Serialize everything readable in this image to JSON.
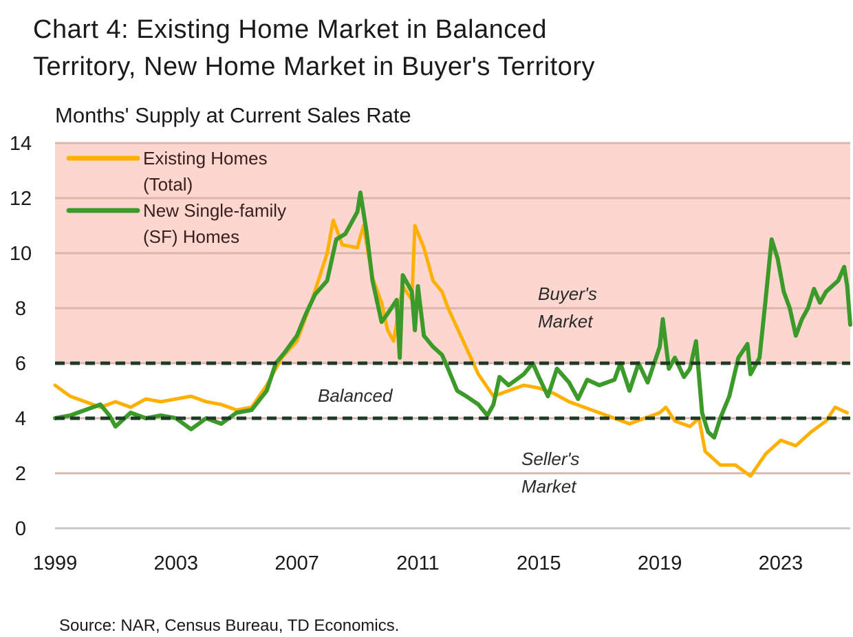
{
  "title": {
    "line1": "Chart 4: Existing Home Market in Balanced",
    "line2": "Territory, New Home Market in Buyer's Territory"
  },
  "source": "Source: NAR, Census Bureau, TD Economics.",
  "chart_data": {
    "type": "line",
    "ylabel": "Months' Supply at Current Sales Rate",
    "xlabel": "",
    "ylim": [
      0,
      14
    ],
    "yticks": [
      "0",
      "2",
      "4",
      "6",
      "8",
      "10",
      "12",
      "14"
    ],
    "xlim": [
      1999,
      2025.3
    ],
    "xticks": [
      "1999",
      "2003",
      "2007",
      "2011",
      "2015",
      "2019",
      "2023"
    ],
    "grid": "horizontal",
    "legend_position": "top-left",
    "bands": [
      {
        "label_line1": "Buyer's",
        "label_line2": "Market",
        "from": 6,
        "to": 14,
        "color": "#fbd7cf"
      },
      {
        "label_line1": "Balanced",
        "label_line2": "",
        "from": 4,
        "to": 6,
        "color": "#ffffff"
      },
      {
        "label_line1": "Seller's",
        "label_line2": "Market",
        "from": 0,
        "to": 4,
        "color": "#ffffff"
      }
    ],
    "reference_lines": [
      4,
      6
    ],
    "series": [
      {
        "name_line1": "Existing Homes",
        "name_line2": "(Total)",
        "color": "#ffb000",
        "points": [
          [
            1999.0,
            5.2
          ],
          [
            1999.5,
            4.8
          ],
          [
            2000.0,
            4.6
          ],
          [
            2000.5,
            4.4
          ],
          [
            2001.0,
            4.6
          ],
          [
            2001.5,
            4.4
          ],
          [
            2002.0,
            4.7
          ],
          [
            2002.5,
            4.6
          ],
          [
            2003.0,
            4.7
          ],
          [
            2003.5,
            4.8
          ],
          [
            2004.0,
            4.6
          ],
          [
            2004.5,
            4.5
          ],
          [
            2005.0,
            4.3
          ],
          [
            2005.5,
            4.4
          ],
          [
            2006.0,
            5.2
          ],
          [
            2006.5,
            6.2
          ],
          [
            2007.0,
            6.8
          ],
          [
            2007.5,
            8.3
          ],
          [
            2008.0,
            10.0
          ],
          [
            2008.2,
            11.2
          ],
          [
            2008.5,
            10.3
          ],
          [
            2009.0,
            10.2
          ],
          [
            2009.2,
            11.0
          ],
          [
            2009.5,
            9.1
          ],
          [
            2009.8,
            8.2
          ],
          [
            2010.0,
            7.2
          ],
          [
            2010.2,
            6.8
          ],
          [
            2010.5,
            8.8
          ],
          [
            2010.8,
            8.3
          ],
          [
            2010.9,
            11.0
          ],
          [
            2011.2,
            10.2
          ],
          [
            2011.5,
            9.0
          ],
          [
            2011.8,
            8.6
          ],
          [
            2012.0,
            8.0
          ],
          [
            2012.5,
            6.8
          ],
          [
            2013.0,
            5.6
          ],
          [
            2013.5,
            4.8
          ],
          [
            2014.0,
            5.0
          ],
          [
            2014.5,
            5.2
          ],
          [
            2015.0,
            5.1
          ],
          [
            2015.5,
            4.9
          ],
          [
            2016.0,
            4.6
          ],
          [
            2016.5,
            4.4
          ],
          [
            2017.0,
            4.2
          ],
          [
            2017.5,
            4.0
          ],
          [
            2018.0,
            3.8
          ],
          [
            2018.5,
            4.0
          ],
          [
            2019.0,
            4.2
          ],
          [
            2019.2,
            4.4
          ],
          [
            2019.5,
            3.9
          ],
          [
            2020.0,
            3.7
          ],
          [
            2020.3,
            4.0
          ],
          [
            2020.5,
            2.8
          ],
          [
            2021.0,
            2.3
          ],
          [
            2021.5,
            2.3
          ],
          [
            2022.0,
            1.9
          ],
          [
            2022.5,
            2.7
          ],
          [
            2023.0,
            3.2
          ],
          [
            2023.5,
            3.0
          ],
          [
            2024.0,
            3.5
          ],
          [
            2024.5,
            3.9
          ],
          [
            2024.8,
            4.4
          ],
          [
            2025.0,
            4.3
          ],
          [
            2025.2,
            4.2
          ]
        ]
      },
      {
        "name_line1": "New Single-family",
        "name_line2": "(SF) Homes",
        "color": "#3c9a2b",
        "points": [
          [
            1999.0,
            4.0
          ],
          [
            1999.5,
            4.1
          ],
          [
            2000.0,
            4.3
          ],
          [
            2000.5,
            4.5
          ],
          [
            2000.8,
            4.1
          ],
          [
            2001.0,
            3.7
          ],
          [
            2001.5,
            4.2
          ],
          [
            2002.0,
            4.0
          ],
          [
            2002.5,
            4.1
          ],
          [
            2003.0,
            4.0
          ],
          [
            2003.5,
            3.6
          ],
          [
            2004.0,
            4.0
          ],
          [
            2004.5,
            3.8
          ],
          [
            2005.0,
            4.2
          ],
          [
            2005.5,
            4.3
          ],
          [
            2006.0,
            5.0
          ],
          [
            2006.3,
            6.0
          ],
          [
            2006.6,
            6.4
          ],
          [
            2007.0,
            7.0
          ],
          [
            2007.3,
            7.8
          ],
          [
            2007.6,
            8.5
          ],
          [
            2008.0,
            9.0
          ],
          [
            2008.3,
            10.5
          ],
          [
            2008.6,
            10.7
          ],
          [
            2009.0,
            11.5
          ],
          [
            2009.1,
            12.2
          ],
          [
            2009.3,
            10.8
          ],
          [
            2009.5,
            9.0
          ],
          [
            2009.8,
            7.5
          ],
          [
            2010.0,
            7.8
          ],
          [
            2010.3,
            8.3
          ],
          [
            2010.4,
            6.2
          ],
          [
            2010.5,
            9.2
          ],
          [
            2010.8,
            8.6
          ],
          [
            2010.9,
            7.2
          ],
          [
            2011.0,
            8.8
          ],
          [
            2011.2,
            7.0
          ],
          [
            2011.5,
            6.6
          ],
          [
            2011.8,
            6.3
          ],
          [
            2012.0,
            5.8
          ],
          [
            2012.3,
            5.0
          ],
          [
            2012.6,
            4.8
          ],
          [
            2013.0,
            4.5
          ],
          [
            2013.3,
            4.1
          ],
          [
            2013.5,
            4.5
          ],
          [
            2013.7,
            5.5
          ],
          [
            2014.0,
            5.2
          ],
          [
            2014.5,
            5.6
          ],
          [
            2014.8,
            6.0
          ],
          [
            2015.0,
            5.5
          ],
          [
            2015.3,
            4.8
          ],
          [
            2015.6,
            5.8
          ],
          [
            2016.0,
            5.3
          ],
          [
            2016.3,
            4.7
          ],
          [
            2016.6,
            5.4
          ],
          [
            2017.0,
            5.2
          ],
          [
            2017.5,
            5.4
          ],
          [
            2017.7,
            6.0
          ],
          [
            2018.0,
            5.0
          ],
          [
            2018.3,
            6.0
          ],
          [
            2018.6,
            5.3
          ],
          [
            2019.0,
            6.6
          ],
          [
            2019.1,
            7.6
          ],
          [
            2019.3,
            5.8
          ],
          [
            2019.5,
            6.2
          ],
          [
            2019.8,
            5.5
          ],
          [
            2020.0,
            5.8
          ],
          [
            2020.2,
            6.8
          ],
          [
            2020.4,
            4.2
          ],
          [
            2020.6,
            3.5
          ],
          [
            2020.8,
            3.3
          ],
          [
            2021.0,
            4.0
          ],
          [
            2021.3,
            4.8
          ],
          [
            2021.6,
            6.2
          ],
          [
            2021.9,
            6.7
          ],
          [
            2022.0,
            5.6
          ],
          [
            2022.3,
            6.2
          ],
          [
            2022.5,
            8.3
          ],
          [
            2022.7,
            10.5
          ],
          [
            2022.9,
            9.8
          ],
          [
            2023.1,
            8.6
          ],
          [
            2023.3,
            8.0
          ],
          [
            2023.5,
            7.0
          ],
          [
            2023.7,
            7.6
          ],
          [
            2023.9,
            8.0
          ],
          [
            2024.1,
            8.7
          ],
          [
            2024.3,
            8.2
          ],
          [
            2024.5,
            8.6
          ],
          [
            2024.7,
            8.8
          ],
          [
            2024.9,
            9.0
          ],
          [
            2025.1,
            9.5
          ],
          [
            2025.2,
            8.8
          ],
          [
            2025.3,
            7.4
          ]
        ]
      }
    ]
  }
}
